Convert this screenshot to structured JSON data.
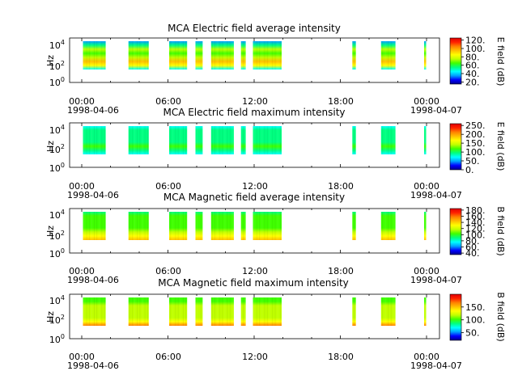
{
  "x_tick_labels": [
    "00:00",
    "06:00",
    "12:00",
    "18:00",
    "00:00"
  ],
  "start_date": "1998-04-06",
  "end_date": "1998-04-07",
  "ylabel": "Hz",
  "y_tick_labels": [
    {
      "base": "10",
      "exp": "0"
    },
    {
      "base": "10",
      "exp": "2"
    },
    {
      "base": "10",
      "exp": "4"
    }
  ],
  "colormap": [
    "#00008b",
    "#0000ff",
    "#00a0ff",
    "#00ffff",
    "#00ff80",
    "#40ff00",
    "#c0ff00",
    "#ffff00",
    "#ffc000",
    "#ff8000",
    "#ff2000",
    "#e00000"
  ],
  "chart_data": [
    {
      "type": "heatmap",
      "title": "MCA  Electric field average intensity",
      "ylabel": "Hz",
      "colorbar_label": "E field (dB)",
      "colorbar_ticks": [
        "20.",
        "40.",
        "60.",
        "80.",
        "100.",
        "120."
      ],
      "colorbar_range": [
        15,
        125
      ],
      "x_range": [
        "1998-04-06T00:00",
        "1998-04-07T01:00"
      ],
      "yscale": "log",
      "ylim": [
        1,
        50000
      ],
      "data_intervals": [
        [
          "00:05",
          "01:40"
        ],
        [
          "03:15",
          "04:40"
        ],
        [
          "06:05",
          "07:20"
        ],
        [
          "07:55",
          "08:25"
        ],
        [
          "09:00",
          "10:35"
        ],
        [
          "11:05",
          "11:25"
        ],
        [
          "11:55",
          "13:55"
        ],
        [
          "18:50",
          "19:05"
        ],
        [
          "20:50",
          "21:50"
        ],
        [
          "23:50",
          "23:57"
        ]
      ],
      "profile": [
        45,
        80,
        95,
        70,
        65,
        70,
        55,
        30
      ]
    },
    {
      "type": "heatmap",
      "title": "MCA  Electric field maximum intensity",
      "ylabel": "Hz",
      "colorbar_label": "E field (dB)",
      "colorbar_ticks": [
        "0.",
        "50.",
        "100.",
        "150.",
        "200.",
        "250."
      ],
      "colorbar_range": [
        0,
        260
      ],
      "x_range": [
        "1998-04-06T00:00",
        "1998-04-07T01:00"
      ],
      "yscale": "log",
      "ylim": [
        1,
        50000
      ],
      "data_intervals": [
        [
          "00:05",
          "01:40"
        ],
        [
          "03:15",
          "04:40"
        ],
        [
          "06:05",
          "07:20"
        ],
        [
          "07:55",
          "08:25"
        ],
        [
          "09:00",
          "10:35"
        ],
        [
          "11:05",
          "11:25"
        ],
        [
          "11:55",
          "13:55"
        ],
        [
          "18:50",
          "19:05"
        ],
        [
          "20:50",
          "21:50"
        ],
        [
          "23:50",
          "23:57"
        ]
      ],
      "profile": [
        60,
        90,
        115,
        105,
        100,
        105,
        95,
        70
      ]
    },
    {
      "type": "heatmap",
      "title": "MCA  Magnetic field average intensity",
      "ylabel": "Hz",
      "colorbar_label": "B field (dB)",
      "colorbar_ticks": [
        "40.",
        "60.",
        "80.",
        "100.",
        "120.",
        "140.",
        "160.",
        "180."
      ],
      "colorbar_range": [
        35,
        185
      ],
      "x_range": [
        "1998-04-06T00:00",
        "1998-04-07T01:00"
      ],
      "yscale": "log",
      "ylim": [
        1,
        50000
      ],
      "data_intervals": [
        [
          "00:05",
          "01:40"
        ],
        [
          "03:15",
          "04:40"
        ],
        [
          "06:05",
          "07:20"
        ],
        [
          "07:55",
          "08:25"
        ],
        [
          "09:00",
          "10:35"
        ],
        [
          "11:05",
          "11:25"
        ],
        [
          "11:55",
          "13:55"
        ],
        [
          "18:50",
          "19:05"
        ],
        [
          "20:50",
          "21:50"
        ],
        [
          "23:50",
          "23:57"
        ]
      ],
      "profile": [
        150,
        130,
        115,
        108,
        104,
        102,
        98,
        92
      ]
    },
    {
      "type": "heatmap",
      "title": "MCA  Magnetic field maximum intensity",
      "ylabel": "Hz",
      "colorbar_label": "B field (dB)",
      "colorbar_ticks": [
        "50.",
        "100.",
        "150."
      ],
      "colorbar_range": [
        20,
        200
      ],
      "x_range": [
        "1998-04-06T00:00",
        "1998-04-07T01:00"
      ],
      "yscale": "log",
      "ylim": [
        1,
        50000
      ],
      "data_intervals": [
        [
          "00:05",
          "01:40"
        ],
        [
          "03:15",
          "04:40"
        ],
        [
          "06:05",
          "07:20"
        ],
        [
          "07:55",
          "08:25"
        ],
        [
          "09:00",
          "10:35"
        ],
        [
          "11:05",
          "11:25"
        ],
        [
          "11:55",
          "13:55"
        ],
        [
          "18:50",
          "19:05"
        ],
        [
          "20:50",
          "21:50"
        ],
        [
          "23:50",
          "23:57"
        ]
      ],
      "profile": [
        165,
        140,
        125,
        118,
        112,
        110,
        106,
        100
      ]
    }
  ]
}
